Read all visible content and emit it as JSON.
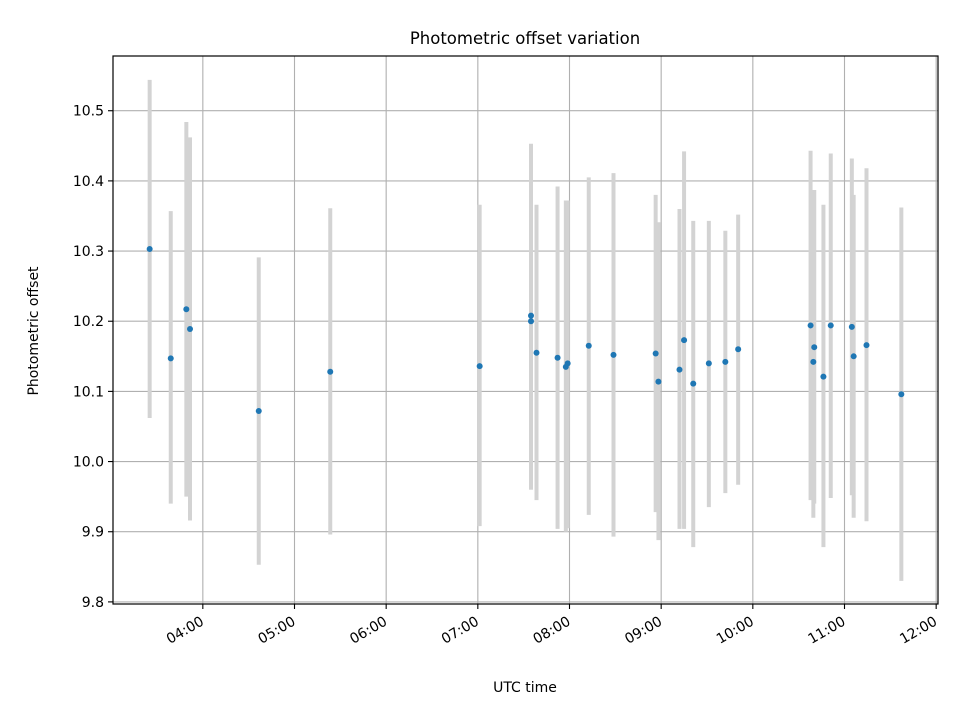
{
  "chart_data": {
    "type": "scatter",
    "title": "Photometric offset variation",
    "xlabel": "UTC time",
    "ylabel": "Photometric offset",
    "x_unit": "UTC hour of day",
    "x_ticks": [
      {
        "value": 4,
        "label": "04:00"
      },
      {
        "value": 5,
        "label": "05:00"
      },
      {
        "value": 6,
        "label": "06:00"
      },
      {
        "value": 7,
        "label": "07:00"
      },
      {
        "value": 8,
        "label": "08:00"
      },
      {
        "value": 9,
        "label": "09:00"
      },
      {
        "value": 10,
        "label": "10:00"
      },
      {
        "value": 11,
        "label": "11:00"
      },
      {
        "value": 12,
        "label": "12:00"
      }
    ],
    "y_ticks": [
      {
        "value": 9.8,
        "label": "9.8"
      },
      {
        "value": 9.9,
        "label": "9.9"
      },
      {
        "value": 10.0,
        "label": "10.0"
      },
      {
        "value": 10.1,
        "label": "10.1"
      },
      {
        "value": 10.2,
        "label": "10.2"
      },
      {
        "value": 10.3,
        "label": "10.3"
      },
      {
        "value": 10.4,
        "label": "10.4"
      },
      {
        "value": 10.5,
        "label": "10.5"
      }
    ],
    "xlim": [
      3.02,
      12.02
    ],
    "ylim": [
      9.797,
      10.578
    ],
    "grid": true,
    "point_color": "#1f77b4",
    "errorbar_color": "#d3d3d3",
    "points": [
      {
        "x": 3.42,
        "y": 10.303,
        "lo": 10.062,
        "hi": 10.544
      },
      {
        "x": 3.65,
        "y": 10.147,
        "lo": 9.94,
        "hi": 10.357
      },
      {
        "x": 3.82,
        "y": 10.217,
        "lo": 9.95,
        "hi": 10.484
      },
      {
        "x": 3.86,
        "y": 10.189,
        "lo": 9.916,
        "hi": 10.462
      },
      {
        "x": 4.61,
        "y": 10.072,
        "lo": 9.853,
        "hi": 10.291
      },
      {
        "x": 5.39,
        "y": 10.128,
        "lo": 9.896,
        "hi": 10.361
      },
      {
        "x": 7.02,
        "y": 10.136,
        "lo": 9.908,
        "hi": 10.366
      },
      {
        "x": 7.58,
        "y": 10.208,
        "lo": 9.96,
        "hi": 10.453
      },
      {
        "x": 7.58,
        "y": 10.2,
        "lo": 9.96,
        "hi": 10.44
      },
      {
        "x": 7.64,
        "y": 10.155,
        "lo": 9.945,
        "hi": 10.366
      },
      {
        "x": 7.87,
        "y": 10.148,
        "lo": 9.904,
        "hi": 10.392
      },
      {
        "x": 7.96,
        "y": 10.135,
        "lo": 9.9,
        "hi": 10.372
      },
      {
        "x": 7.98,
        "y": 10.14,
        "lo": 9.905,
        "hi": 10.372
      },
      {
        "x": 8.21,
        "y": 10.165,
        "lo": 9.924,
        "hi": 10.405
      },
      {
        "x": 8.48,
        "y": 10.152,
        "lo": 9.893,
        "hi": 10.411
      },
      {
        "x": 8.94,
        "y": 10.154,
        "lo": 9.928,
        "hi": 10.38
      },
      {
        "x": 8.97,
        "y": 10.114,
        "lo": 9.888,
        "hi": 10.341
      },
      {
        "x": 9.2,
        "y": 10.131,
        "lo": 9.904,
        "hi": 10.36
      },
      {
        "x": 9.25,
        "y": 10.173,
        "lo": 9.904,
        "hi": 10.442
      },
      {
        "x": 9.35,
        "y": 10.111,
        "lo": 9.878,
        "hi": 10.343
      },
      {
        "x": 9.52,
        "y": 10.14,
        "lo": 9.935,
        "hi": 10.343
      },
      {
        "x": 9.7,
        "y": 10.142,
        "lo": 9.955,
        "hi": 10.329
      },
      {
        "x": 9.84,
        "y": 10.16,
        "lo": 9.967,
        "hi": 10.352
      },
      {
        "x": 10.63,
        "y": 10.194,
        "lo": 9.945,
        "hi": 10.443
      },
      {
        "x": 10.66,
        "y": 10.142,
        "lo": 9.92,
        "hi": 10.365
      },
      {
        "x": 10.67,
        "y": 10.163,
        "lo": 9.94,
        "hi": 10.387
      },
      {
        "x": 10.77,
        "y": 10.121,
        "lo": 9.878,
        "hi": 10.366
      },
      {
        "x": 10.85,
        "y": 10.194,
        "lo": 9.948,
        "hi": 10.439
      },
      {
        "x": 11.08,
        "y": 10.192,
        "lo": 9.952,
        "hi": 10.432
      },
      {
        "x": 11.1,
        "y": 10.15,
        "lo": 9.92,
        "hi": 10.38
      },
      {
        "x": 11.24,
        "y": 10.166,
        "lo": 9.915,
        "hi": 10.418
      },
      {
        "x": 11.62,
        "y": 10.096,
        "lo": 9.83,
        "hi": 10.362
      }
    ]
  }
}
